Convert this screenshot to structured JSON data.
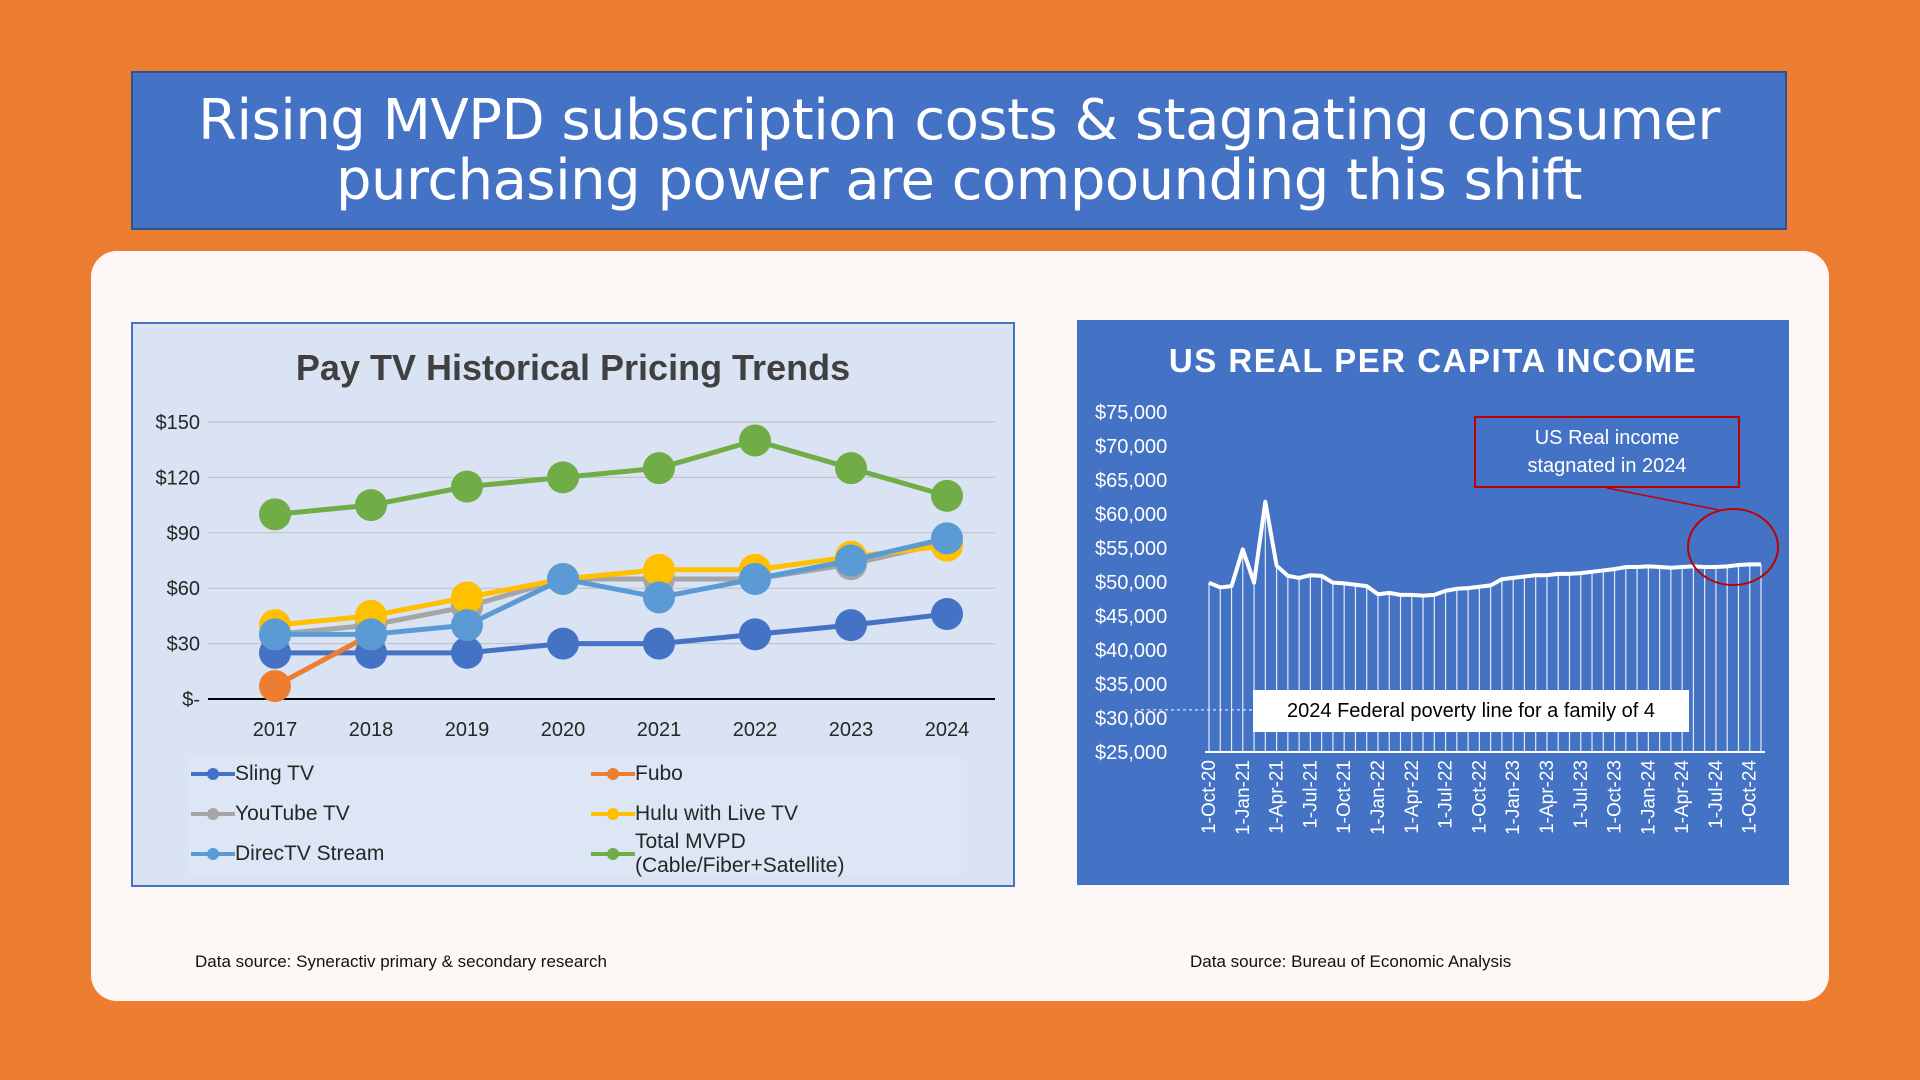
{
  "slide": {
    "title_line1": "Rising MVPD subscription costs & stagnating consumer",
    "title_line2": "purchasing power are compounding this shift",
    "source_left": "Data source: Syneractiv primary & secondary research",
    "source_right": "Data source: Bureau of Economic Analysis"
  },
  "colors": {
    "background": "#ED7D31",
    "title_fill": "#4472C4",
    "panel": "#FDF8F5",
    "left_chart_fill": "#DAE3F3",
    "right_chart_fill": "#4472C4",
    "annotation_red": "#C00000"
  },
  "chart_data": [
    {
      "type": "line",
      "title": "Pay TV Historical Pricing Trends",
      "categories": [
        "2017",
        "2018",
        "2019",
        "2020",
        "2021",
        "2022",
        "2023",
        "2024"
      ],
      "y_ticks": [
        "$-",
        "$30",
        "$60",
        "$90",
        "$120",
        "$150"
      ],
      "ylim": [
        0,
        150
      ],
      "grid": true,
      "legend_position": "bottom",
      "series": [
        {
          "name": "Sling TV",
          "color": "#4472C4",
          "values": [
            25,
            25,
            25,
            30,
            30,
            35,
            40,
            46
          ]
        },
        {
          "name": "Fubo",
          "color": "#ED7D31",
          "values": [
            7,
            35,
            null,
            null,
            null,
            null,
            null,
            null
          ]
        },
        {
          "name": "YouTube TV",
          "color": "#A5A5A5",
          "values": [
            35,
            40,
            50,
            65,
            65,
            65,
            73,
            85
          ]
        },
        {
          "name": "Hulu with Live TV",
          "color": "#FFC000",
          "values": [
            40,
            45,
            55,
            65,
            70,
            70,
            77,
            83
          ]
        },
        {
          "name": "DirecTV Stream",
          "color": "#5B9BD5",
          "values": [
            35,
            35,
            40,
            65,
            55,
            65,
            75,
            87
          ]
        },
        {
          "name": "Total MVPD (Cable/Fiber+Satellite)",
          "color": "#70AD47",
          "values": [
            100,
            105,
            115,
            120,
            125,
            140,
            125,
            110
          ]
        }
      ]
    },
    {
      "type": "area",
      "title": "US REAL PER CAPITA INCOME",
      "y_ticks": [
        "$25,000",
        "$30,000",
        "$35,000",
        "$40,000",
        "$45,000",
        "$50,000",
        "$55,000",
        "$60,000",
        "$65,000",
        "$70,000",
        "$75,000"
      ],
      "ylim": [
        25000,
        75000
      ],
      "x_labels": [
        "1-Oct-20",
        "1-Jan-21",
        "1-Apr-21",
        "1-Jul-21",
        "1-Oct-21",
        "1-Jan-22",
        "1-Apr-22",
        "1-Jul-22",
        "1-Oct-22",
        "1-Jan-23",
        "1-Apr-23",
        "1-Jul-23",
        "1-Oct-23",
        "1-Jan-24",
        "1-Apr-24",
        "1-Jul-24",
        "1-Oct-24"
      ],
      "x_start": "2020-10-01",
      "x_end": "2024-12-01",
      "series": [
        {
          "name": "US Real per Capita Income",
          "color": "#FFFFFF",
          "values": [
            49900,
            49200,
            49400,
            54800,
            49900,
            61800,
            52400,
            50900,
            50600,
            51000,
            50900,
            49900,
            49800,
            49600,
            49400,
            48200,
            48400,
            48100,
            48100,
            48000,
            48100,
            48700,
            49000,
            49100,
            49300,
            49500,
            50400,
            50600,
            50800,
            51000,
            51000,
            51200,
            51200,
            51300,
            51500,
            51700,
            51900,
            52200,
            52200,
            52300,
            52200,
            52100,
            52200,
            52300,
            52200,
            52200,
            52300,
            52500,
            52600,
            52600
          ]
        }
      ],
      "annotations": {
        "note": "US Real income stagnated in 2024",
        "note_line1": "US Real income",
        "note_line2": "stagnated in 2024",
        "poverty_line_label": "2024 Federal poverty line for a family of 4",
        "poverty_line_value": 31200
      }
    }
  ]
}
